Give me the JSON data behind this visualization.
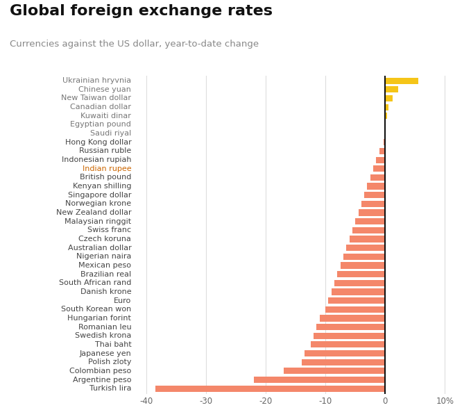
{
  "title": "Global foreign exchange rates",
  "subtitle": "Currencies against the US dollar, year-to-date change",
  "currencies": [
    "Ukrainian hryvnia",
    "Chinese yuan",
    "New Taiwan dollar",
    "Canadian dollar",
    "Kuwaiti dinar",
    "Egyptian pound",
    "Saudi riyal",
    "Hong Kong dollar",
    "Russian ruble",
    "Indonesian rupiah",
    "Indian rupee",
    "British pound",
    "Kenyan shilling",
    "Singapore dollar",
    "Norwegian krone",
    "New Zealand dollar",
    "Malaysian ringgit",
    "Swiss franc",
    "Czech koruna",
    "Australian dollar",
    "Nigerian naira",
    "Mexican peso",
    "Brazilian real",
    "South African rand",
    "Danish krone",
    "Euro",
    "South Korean won",
    "Hungarian forint",
    "Romanian leu",
    "Swedish krona",
    "Thai baht",
    "Japanese yen",
    "Polish zloty",
    "Colombian peso",
    "Argentine peso",
    "Turkish lira"
  ],
  "values": [
    5.5,
    2.2,
    1.2,
    0.5,
    0.3,
    0.1,
    0.05,
    -0.3,
    -1.0,
    -1.5,
    -2.0,
    -2.5,
    -3.0,
    -3.5,
    -4.0,
    -4.5,
    -5.0,
    -5.5,
    -6.0,
    -6.5,
    -7.0,
    -7.5,
    -8.0,
    -8.5,
    -9.0,
    -9.5,
    -10.0,
    -11.0,
    -11.5,
    -12.0,
    -12.5,
    -13.5,
    -14.0,
    -17.0,
    -22.0,
    -38.5
  ],
  "positive_color": "#F5C518",
  "negative_color": "#F4876A",
  "background_color": "#ffffff",
  "xlim": [
    -42,
    12
  ],
  "xticks": [
    -40,
    -30,
    -20,
    -10,
    0,
    10
  ],
  "xticklabels": [
    "-40",
    "-30",
    "-20",
    "-10",
    "0",
    "10%"
  ],
  "title_fontsize": 16,
  "subtitle_fontsize": 9.5,
  "label_fontsize": 8,
  "tick_fontsize": 8.5,
  "orange_labels": [
    "Indian rupee"
  ],
  "positive_label_color": "#888888",
  "negative_label_color": "#444444",
  "orange_label_color": "#cc6600"
}
